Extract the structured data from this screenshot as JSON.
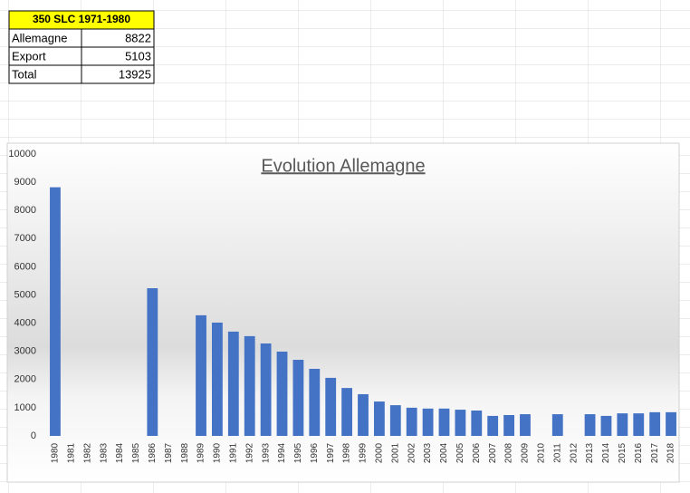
{
  "table": {
    "header": "350 SLC  1971-1980",
    "rows": [
      [
        "Allemagne",
        8822
      ],
      [
        "Export",
        5103
      ],
      [
        "Total",
        13925
      ]
    ]
  },
  "chart_data": {
    "type": "bar",
    "title": "Evolution Allemagne",
    "categories": [
      "1980",
      "1981",
      "1982",
      "1983",
      "1984",
      "1985",
      "1986",
      "1987",
      "1988",
      "1989",
      "1990",
      "1991",
      "1992",
      "1993",
      "1994",
      "1995",
      "1996",
      "1997",
      "1998",
      "1999",
      "2000",
      "2001",
      "2002",
      "2003",
      "2004",
      "2005",
      "2006",
      "2007",
      "2008",
      "2009",
      "2010",
      "2011",
      "2012",
      "2013",
      "2014",
      "2015",
      "2016",
      "2017",
      "2018"
    ],
    "values": [
      8822,
      null,
      null,
      null,
      null,
      null,
      5240,
      null,
      null,
      4280,
      4020,
      3700,
      3540,
      3280,
      2990,
      2700,
      2380,
      2060,
      1700,
      1480,
      1220,
      1090,
      1000,
      970,
      970,
      930,
      900,
      710,
      740,
      770,
      null,
      770,
      null,
      770,
      710,
      800,
      800,
      840,
      840
    ],
    "color": "#4472c4",
    "ylim": [
      0,
      10000
    ],
    "yticks": [
      0,
      1000,
      2000,
      3000,
      4000,
      5000,
      6000,
      7000,
      8000,
      9000,
      10000
    ],
    "grid": false
  }
}
